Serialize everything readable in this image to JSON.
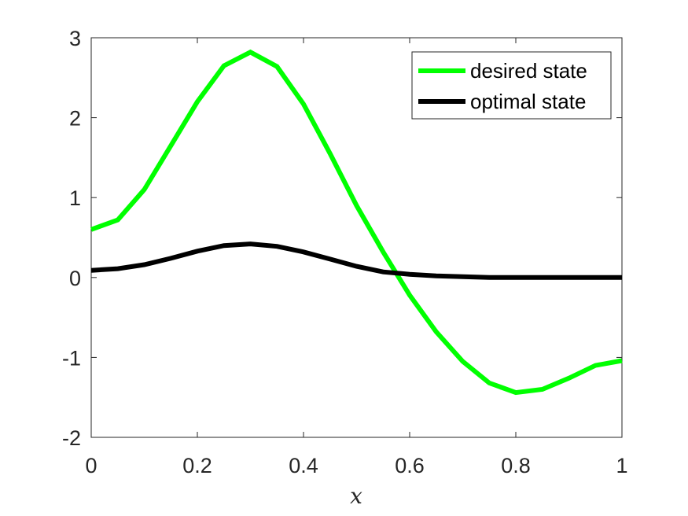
{
  "chart_data": {
    "type": "line",
    "title": "",
    "xlabel": "x",
    "ylabel": "",
    "xlim": [
      0,
      1
    ],
    "ylim": [
      -2,
      3
    ],
    "xticks": [
      "0",
      "0.2",
      "0.4",
      "0.6",
      "0.8",
      "1"
    ],
    "yticks": [
      "-2",
      "-1",
      "0",
      "1",
      "2",
      "3"
    ],
    "grid": false,
    "legend_position": "top-right",
    "x": [
      0,
      0.05,
      0.1,
      0.15,
      0.2,
      0.25,
      0.3,
      0.35,
      0.4,
      0.45,
      0.5,
      0.55,
      0.6,
      0.65,
      0.7,
      0.75,
      0.8,
      0.85,
      0.9,
      0.95,
      1
    ],
    "series": [
      {
        "name": "desired state",
        "color": "#00ff00",
        "values": [
          0.6,
          0.72,
          1.1,
          1.65,
          2.2,
          2.65,
          2.82,
          2.64,
          2.17,
          1.55,
          0.9,
          0.32,
          -0.22,
          -0.68,
          -1.05,
          -1.32,
          -1.44,
          -1.4,
          -1.26,
          -1.1,
          -1.04
        ]
      },
      {
        "name": "optimal state",
        "color": "#000000",
        "values": [
          0.09,
          0.11,
          0.16,
          0.24,
          0.33,
          0.4,
          0.42,
          0.39,
          0.32,
          0.23,
          0.14,
          0.07,
          0.04,
          0.02,
          0.01,
          0.0,
          0.0,
          0.0,
          0.0,
          0.0,
          0.0
        ]
      }
    ]
  }
}
